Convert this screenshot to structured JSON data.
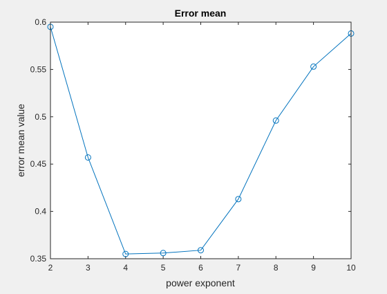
{
  "chart_data": {
    "type": "line",
    "title": "Error mean",
    "xlabel": "power exponent",
    "ylabel": "error mean value",
    "xlim": [
      2,
      10
    ],
    "ylim": [
      0.35,
      0.6
    ],
    "xticks": [
      2,
      3,
      4,
      5,
      6,
      7,
      8,
      9,
      10
    ],
    "xtick_labels": [
      "2",
      "3",
      "4",
      "5",
      "6",
      "7",
      "8",
      "9",
      "10"
    ],
    "yticks": [
      0.35,
      0.4,
      0.45,
      0.5,
      0.55,
      0.6
    ],
    "ytick_labels": [
      "0.35",
      "0.4",
      "0.45",
      "0.5",
      "0.55",
      "0.6"
    ],
    "grid": false,
    "marker": "circle",
    "line_color": "#0072bd",
    "axes_color": "#262626",
    "series": [
      {
        "x": [
          2,
          3,
          4,
          5,
          6,
          7,
          8,
          9,
          10
        ],
        "y": [
          0.595,
          0.457,
          0.355,
          0.356,
          0.359,
          0.413,
          0.496,
          0.553,
          0.588
        ]
      }
    ]
  }
}
